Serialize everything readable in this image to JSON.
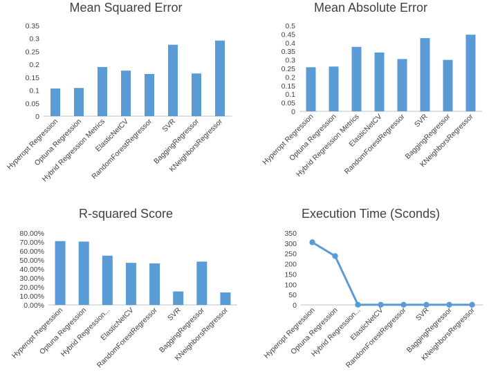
{
  "colors": {
    "bar": "#5b9bd5",
    "line": "#5b9bd5",
    "axis": "#bfbfbf",
    "text": "#404040"
  },
  "chart_data": [
    {
      "type": "bar",
      "title": "Mean Squared Error",
      "categories": [
        "Hyperopt Regression",
        "Optuna Regression",
        "Hybrid Regression Metrics",
        "ElasticNetCV",
        "RandomForestRegressor",
        "SVR",
        "BaggingRegressor",
        "KNeighborsRegressor"
      ],
      "values": [
        0.107,
        0.109,
        0.19,
        0.176,
        0.163,
        0.276,
        0.165,
        0.292
      ],
      "ylim": [
        0,
        0.35
      ],
      "yticks": [
        0,
        0.05,
        0.1,
        0.15,
        0.2,
        0.25,
        0.3,
        0.35
      ],
      "ytick_labels": [
        "0",
        "0.05",
        "0.1",
        "0.15",
        "0.2",
        "0.25",
        "0.3",
        "0.35"
      ],
      "xlabel": "",
      "ylabel": "",
      "grid": false
    },
    {
      "type": "bar",
      "title": "Mean Absolute Error",
      "categories": [
        "Hyperopt Regression",
        "Optuna Regression",
        "Hybrid Regression Metrics",
        "ElasticNetCV",
        "RandomForestRegressor",
        "SVR",
        "BaggingRegressor",
        "KNeighborsRegressor"
      ],
      "values": [
        0.257,
        0.261,
        0.376,
        0.343,
        0.305,
        0.427,
        0.3,
        0.447
      ],
      "ylim": [
        0,
        0.5
      ],
      "yticks": [
        0,
        0.05,
        0.1,
        0.15,
        0.2,
        0.25,
        0.3,
        0.35,
        0.4,
        0.45,
        0.5
      ],
      "ytick_labels": [
        "0",
        "0.05",
        "0.1",
        "0.15",
        "0.2",
        "0.25",
        "0.3",
        "0.35",
        "0.4",
        "0.45",
        "0.5"
      ],
      "xlabel": "",
      "ylabel": "",
      "grid": false
    },
    {
      "type": "bar",
      "title": "R-squared Score",
      "categories": [
        "Hyperopt Regression",
        "Optuna Regression",
        "Hybrid Regression...",
        "ElasticNetCV",
        "RandomForestRegressor",
        "SVR",
        "BaggingRegressor",
        "KNeighborsRegressor"
      ],
      "values": [
        71.0,
        70.5,
        54.8,
        46.8,
        46.2,
        15.0,
        48.2,
        13.9
      ],
      "unit": "%",
      "ylim": [
        0,
        80
      ],
      "yticks": [
        0,
        10,
        20,
        30,
        40,
        50,
        60,
        70,
        80
      ],
      "ytick_labels": [
        "0.00%",
        "10.00%",
        "20.00%",
        "30.00%",
        "40.00%",
        "50.00%",
        "60.00%",
        "70.00%",
        "80.00%"
      ],
      "xlabel": "",
      "ylabel": "",
      "grid": false
    },
    {
      "type": "line",
      "title": "Execution Time (Sconds)",
      "categories": [
        "Hyperopt Regression",
        "Optuna Regression",
        "Hybrid Regression...",
        "ElasticNetCV",
        "RandomForestRegressor",
        "SVR",
        "BaggingRegressor",
        "KNeighborsRegressor"
      ],
      "values": [
        305,
        238,
        1,
        1,
        1,
        1,
        1,
        1
      ],
      "ylim": [
        0,
        350
      ],
      "yticks": [
        0,
        50,
        100,
        150,
        200,
        250,
        300,
        350
      ],
      "ytick_labels": [
        "0",
        "50",
        "100",
        "150",
        "200",
        "250",
        "300",
        "350"
      ],
      "xlabel": "",
      "ylabel": "",
      "grid": false,
      "markers": true
    }
  ]
}
